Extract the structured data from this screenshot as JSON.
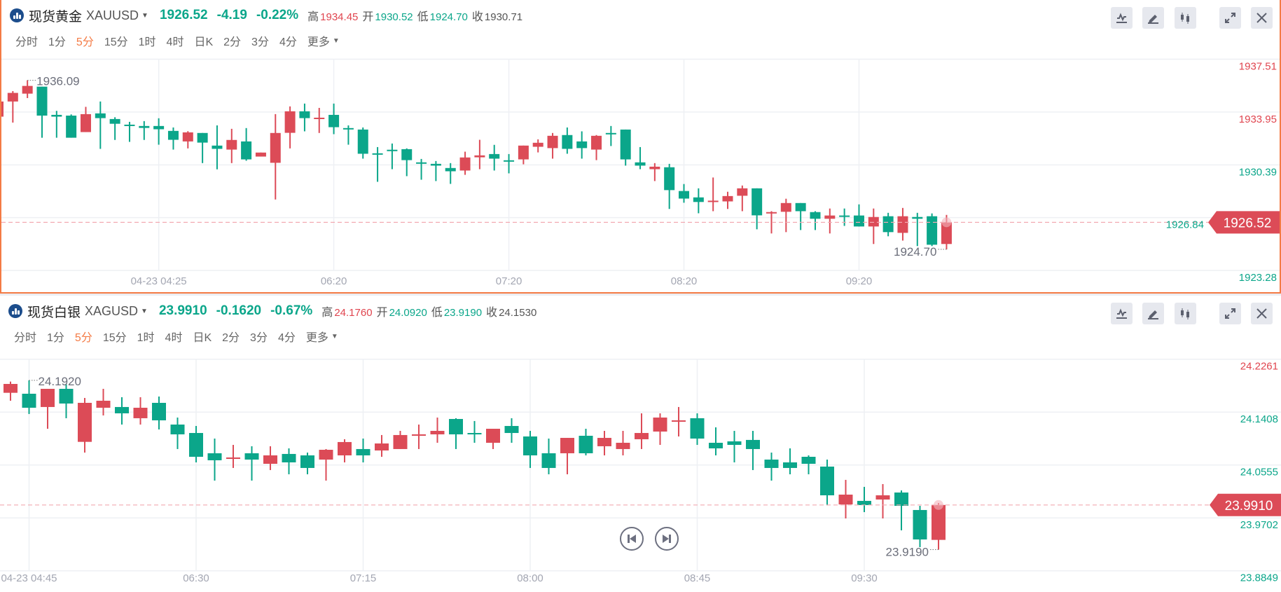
{
  "panels": [
    {
      "title": "现货黄金",
      "symbol": "XAUUSD",
      "price": "1926.52",
      "change": "-4.19",
      "change_pct": "-0.22%",
      "stats": [
        {
          "label": "高",
          "value": "1934.45",
          "tone": "up"
        },
        {
          "label": "开",
          "value": "1930.52",
          "tone": "down"
        },
        {
          "label": "低",
          "value": "1924.70",
          "tone": "down"
        },
        {
          "label": "收",
          "value": "1930.71",
          "tone": "flat"
        }
      ],
      "intervals": [
        "分时",
        "1分",
        "5分",
        "15分",
        "1时",
        "4时",
        "日K",
        "2分",
        "3分",
        "4分",
        "更多"
      ],
      "active_interval": "5分",
      "toolbar": [
        "indicator-icon",
        "draw-pencil-icon",
        "candle-type-icon",
        "expand-icon",
        "close-icon"
      ]
    },
    {
      "title": "现货白银",
      "symbol": "XAGUSD",
      "price": "23.9910",
      "change": "-0.1620",
      "change_pct": "-0.67%",
      "stats": [
        {
          "label": "高",
          "value": "24.1760",
          "tone": "up"
        },
        {
          "label": "开",
          "value": "24.0920",
          "tone": "down"
        },
        {
          "label": "低",
          "value": "23.9190",
          "tone": "down"
        },
        {
          "label": "收",
          "value": "24.1530",
          "tone": "flat"
        }
      ],
      "intervals": [
        "分时",
        "1分",
        "5分",
        "15分",
        "1时",
        "4时",
        "日K",
        "2分",
        "3分",
        "4分",
        "更多"
      ],
      "active_interval": "5分",
      "toolbar": [
        "indicator-icon",
        "draw-pencil-icon",
        "candle-type-icon",
        "expand-icon",
        "close-icon"
      ],
      "playback": [
        "step-back-icon",
        "step-forward-icon"
      ]
    }
  ],
  "colors": {
    "up": "#dc4b57",
    "down": "#0ba68a",
    "accent": "#f47b45",
    "axis_up": "#e0454f",
    "axis_down": "#0ba68a"
  },
  "chart_data": [
    {
      "type": "candlestick",
      "symbol": "XAUUSD",
      "interval": "5分",
      "prev_close": 1930.71,
      "last_price": "1926.52",
      "y_ticks": [
        "1937.51",
        "1933.95",
        "1930.39",
        "1926.84",
        "1923.28"
      ],
      "ylim": [
        1923.28,
        1937.51
      ],
      "x_ticks": [
        {
          "index": 11,
          "label": "04-23 04:25"
        },
        {
          "index": 23,
          "label": "06:20"
        },
        {
          "index": 35,
          "label": "07:20"
        },
        {
          "index": 47,
          "label": "08:20"
        },
        {
          "index": 59,
          "label": "09:20"
        }
      ],
      "high_marker": {
        "index": 2,
        "value": "1936.09"
      },
      "low_marker": {
        "index": 65,
        "value": "1924.70"
      },
      "ohlc_fields": [
        "open",
        "high",
        "low",
        "close"
      ],
      "candles": [
        [
          1933.64,
          1934.8,
          1933.5,
          1934.66
        ],
        [
          1934.66,
          1935.36,
          1933.24,
          1935.24
        ],
        [
          1935.19,
          1936.09,
          1934.89,
          1935.71
        ],
        [
          1935.66,
          1935.66,
          1932.22,
          1933.71
        ],
        [
          1933.76,
          1934.03,
          1932.22,
          1933.64
        ],
        [
          1933.71,
          1933.79,
          1932.22,
          1932.22
        ],
        [
          1932.6,
          1934.3,
          1932.6,
          1933.81
        ],
        [
          1933.86,
          1934.66,
          1931.47,
          1933.54
        ],
        [
          1933.48,
          1933.6,
          1932.07,
          1933.16
        ],
        [
          1933.1,
          1933.29,
          1931.94,
          1933.02
        ],
        [
          1933.01,
          1933.34,
          1932.07,
          1932.88
        ],
        [
          1933.01,
          1933.53,
          1931.75,
          1932.79
        ],
        [
          1932.68,
          1932.91,
          1931.42,
          1932.08
        ],
        [
          1931.97,
          1932.66,
          1931.5,
          1932.58
        ],
        [
          1932.54,
          1932.54,
          1930.51,
          1931.89
        ],
        [
          1931.69,
          1933.05,
          1930.09,
          1931.47
        ],
        [
          1931.42,
          1932.82,
          1930.51,
          1932.07
        ],
        [
          1931.97,
          1932.87,
          1930.67,
          1930.76
        ],
        [
          1930.95,
          1931.22,
          1930.95,
          1931.22
        ],
        [
          1930.53,
          1933.81,
          1928.06,
          1932.54
        ],
        [
          1932.55,
          1934.33,
          1931.5,
          1934.0
        ],
        [
          1934.0,
          1934.52,
          1932.65,
          1933.54
        ],
        [
          1933.49,
          1934.23,
          1932.54,
          1933.57
        ],
        [
          1933.76,
          1934.52,
          1932.46,
          1932.93
        ],
        [
          1932.87,
          1933.05,
          1931.75,
          1932.82
        ],
        [
          1932.77,
          1932.91,
          1930.81,
          1931.14
        ],
        [
          1931.17,
          1931.59,
          1929.25,
          1931.14
        ],
        [
          1931.41,
          1931.83,
          1930.1,
          1931.36
        ],
        [
          1931.45,
          1931.5,
          1929.63,
          1930.71
        ],
        [
          1930.56,
          1930.79,
          1929.39,
          1930.48
        ],
        [
          1930.46,
          1930.65,
          1929.3,
          1930.34
        ],
        [
          1930.18,
          1930.51,
          1929.11,
          1929.96
        ],
        [
          1930.01,
          1931.28,
          1929.72,
          1930.89
        ],
        [
          1930.9,
          1932.08,
          1930.1,
          1931.03
        ],
        [
          1931.12,
          1931.74,
          1930.01,
          1930.81
        ],
        [
          1930.7,
          1931.12,
          1929.82,
          1930.67
        ],
        [
          1930.76,
          1931.69,
          1930.43,
          1931.69
        ],
        [
          1931.61,
          1932.11,
          1931.23,
          1931.88
        ],
        [
          1931.52,
          1932.54,
          1930.81,
          1932.35
        ],
        [
          1932.4,
          1932.91,
          1931.14,
          1931.47
        ],
        [
          1931.97,
          1932.65,
          1930.81,
          1931.52
        ],
        [
          1931.42,
          1932.4,
          1930.71,
          1932.35
        ],
        [
          1932.54,
          1933.01,
          1931.66,
          1932.46
        ],
        [
          1932.77,
          1932.77,
          1930.34,
          1930.76
        ],
        [
          1930.56,
          1931.59,
          1930.1,
          1930.34
        ],
        [
          1930.1,
          1930.51,
          1929.3,
          1930.27
        ],
        [
          1930.23,
          1930.46,
          1927.42,
          1928.69
        ],
        [
          1928.63,
          1929.1,
          1927.84,
          1928.12
        ],
        [
          1928.2,
          1928.81,
          1927.13,
          1927.89
        ],
        [
          1927.93,
          1929.54,
          1927.27,
          1927.98
        ],
        [
          1927.93,
          1928.58,
          1927.42,
          1928.29
        ],
        [
          1928.31,
          1929.0,
          1927.27,
          1928.81
        ],
        [
          1928.81,
          1928.81,
          1926.05,
          1926.99
        ],
        [
          1927.13,
          1927.27,
          1925.77,
          1927.21
        ],
        [
          1927.23,
          1928.11,
          1925.86,
          1927.82
        ],
        [
          1927.82,
          1927.82,
          1926.0,
          1927.27
        ],
        [
          1927.21,
          1927.27,
          1926.0,
          1926.76
        ],
        [
          1926.76,
          1927.45,
          1925.77,
          1926.98
        ],
        [
          1926.98,
          1927.45,
          1926.28,
          1926.93
        ],
        [
          1926.98,
          1927.73,
          1926.24,
          1926.24
        ],
        [
          1926.24,
          1927.45,
          1925.06,
          1926.88
        ],
        [
          1926.93,
          1927.16,
          1925.58,
          1925.86
        ],
        [
          1925.81,
          1927.49,
          1925.29,
          1926.93
        ],
        [
          1926.88,
          1927.16,
          1924.92,
          1926.76
        ],
        [
          1926.93,
          1927.12,
          1924.92,
          1925.01
        ],
        [
          1925.06,
          1927.02,
          1924.7,
          1926.52
        ]
      ]
    },
    {
      "type": "candlestick",
      "symbol": "XAGUSD",
      "interval": "5分",
      "prev_close": 24.153,
      "last_price": "23.9910",
      "y_ticks": [
        "24.2261",
        "24.1408",
        "24.0555",
        "23.9702",
        "23.8849"
      ],
      "ylim": [
        23.8849,
        24.2261
      ],
      "x_ticks": [
        {
          "index": 1,
          "label": "04-23 04:45"
        },
        {
          "index": 10,
          "label": "06:30"
        },
        {
          "index": 19,
          "label": "07:15"
        },
        {
          "index": 28,
          "label": "08:00"
        },
        {
          "index": 37,
          "label": "08:45"
        },
        {
          "index": 46,
          "label": "09:30"
        }
      ],
      "high_marker": {
        "index": 1,
        "value": "24.1920"
      },
      "low_marker": {
        "index": 50,
        "value": "23.9190"
      },
      "ohlc_fields": [
        "open",
        "high",
        "low",
        "close"
      ],
      "candles": [
        [
          24.1719,
          24.19,
          24.1591,
          24.1862
        ],
        [
          24.1704,
          24.192,
          24.1377,
          24.1478
        ],
        [
          24.149,
          24.1783,
          24.1139,
          24.1783
        ],
        [
          24.1783,
          24.1855,
          24.1309,
          24.1546
        ],
        [
          24.0928,
          24.1636,
          24.0755,
          24.1557
        ],
        [
          24.1478,
          24.1783,
          24.1354,
          24.1591
        ],
        [
          24.149,
          24.1648,
          24.1207,
          24.1388
        ],
        [
          24.1309,
          24.1648,
          24.1207,
          24.1478
        ],
        [
          24.1557,
          24.1659,
          24.1128,
          24.1275
        ],
        [
          24.1207,
          24.132,
          24.0812,
          24.1049
        ],
        [
          24.1071,
          24.1184,
          24.0597,
          24.0687
        ],
        [
          24.0744,
          24.0981,
          24.0303,
          24.0631
        ],
        [
          24.0653,
          24.0879,
          24.0507,
          24.0676
        ],
        [
          24.0744,
          24.0857,
          24.0303,
          24.0642
        ],
        [
          24.0574,
          24.0857,
          24.0473,
          24.071
        ],
        [
          24.0733,
          24.0823,
          24.0405,
          24.0597
        ],
        [
          24.071,
          24.0755,
          24.0405,
          24.0507
        ],
        [
          24.0642,
          24.0812,
          24.0303,
          24.08
        ],
        [
          24.071,
          24.097,
          24.0597,
          24.0925
        ],
        [
          24.0812,
          24.0981,
          24.0597,
          24.071
        ],
        [
          24.0789,
          24.1038,
          24.0687,
          24.0902
        ],
        [
          24.0812,
          24.1105,
          24.0812,
          24.1038
        ],
        [
          24.1038,
          24.1207,
          24.0812,
          24.1049
        ],
        [
          24.1049,
          24.132,
          24.0913,
          24.1105
        ],
        [
          24.1297,
          24.1309,
          24.0812,
          24.1049
        ],
        [
          24.1071,
          24.1264,
          24.0913,
          24.1049
        ],
        [
          24.0913,
          24.1139,
          24.0812,
          24.1139
        ],
        [
          24.1184,
          24.1309,
          24.0913,
          24.1071
        ],
        [
          24.1015,
          24.1105,
          24.0507,
          24.071
        ],
        [
          24.0744,
          24.0981,
          24.0405,
          24.0507
        ],
        [
          24.0744,
          24.0992,
          24.0405,
          24.0992
        ],
        [
          24.1026,
          24.1139,
          24.071,
          24.0744
        ],
        [
          24.0857,
          24.1105,
          24.071,
          24.0992
        ],
        [
          24.0812,
          24.1105,
          24.071,
          24.0913
        ],
        [
          24.097,
          24.1388,
          24.0812,
          24.1071
        ],
        [
          24.1094,
          24.1388,
          24.0879,
          24.132
        ],
        [
          24.1264,
          24.149,
          24.1015,
          24.1275
        ],
        [
          24.1309,
          24.1388,
          24.0879,
          24.0981
        ],
        [
          24.0913,
          24.1162,
          24.071,
          24.0823
        ],
        [
          24.0936,
          24.1105,
          24.0597,
          24.0879
        ],
        [
          24.0959,
          24.1105,
          24.0473,
          24.0812
        ],
        [
          24.0642,
          24.0755,
          24.0303,
          24.0507
        ],
        [
          24.0597,
          24.0823,
          24.0405,
          24.0507
        ],
        [
          24.0687,
          24.071,
          24.0405,
          24.0574
        ],
        [
          24.0529,
          24.0642,
          23.9904,
          24.0066
        ],
        [
          23.9919,
          24.0315,
          23.9693,
          24.0077
        ],
        [
          23.9976,
          24.0202,
          23.9795,
          23.9908
        ],
        [
          23.9998,
          24.0247,
          23.9693,
          24.0066
        ],
        [
          24.0111,
          24.0145,
          23.9501,
          23.9896
        ],
        [
          23.9829,
          23.9896,
          23.923,
          23.9354
        ],
        [
          23.9347,
          23.9942,
          23.919,
          23.991
        ]
      ]
    }
  ]
}
